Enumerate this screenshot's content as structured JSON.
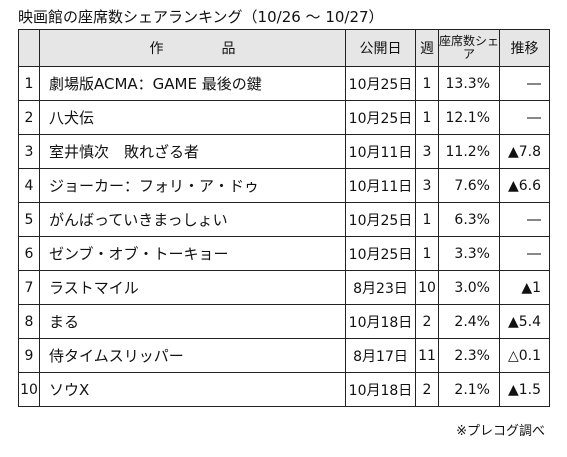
{
  "title": "映画館の座席数シェアランキング（10/26 ～ 10/27）",
  "headers": {
    "title_col": "作　品",
    "release_col": "公開日",
    "weeks_col": "週",
    "share_col": "座席数シェア",
    "trend_col": "推移"
  },
  "rows": [
    {
      "rank": "1",
      "title": "劇場版ACMA：GAME 最後の鍵",
      "release": "10月25日",
      "weeks": "1",
      "share": "13.3%",
      "trend": "―"
    },
    {
      "rank": "2",
      "title": "八犬伝",
      "release": "10月25日",
      "weeks": "1",
      "share": "12.1%",
      "trend": "―"
    },
    {
      "rank": "3",
      "title": "室井慎次　敗れざる者",
      "release": "10月11日",
      "weeks": "3",
      "share": "11.2%",
      "trend": "▲7.8"
    },
    {
      "rank": "4",
      "title": "ジョーカー：フォリ・ア・ドゥ",
      "release": "10月11日",
      "weeks": "3",
      "share": "7.6%",
      "trend": "▲6.6"
    },
    {
      "rank": "5",
      "title": "がんばっていきまっしょい",
      "release": "10月25日",
      "weeks": "1",
      "share": "6.3%",
      "trend": "―"
    },
    {
      "rank": "6",
      "title": "ゼンブ・オブ・トーキョー",
      "release": "10月25日",
      "weeks": "1",
      "share": "3.3%",
      "trend": "―"
    },
    {
      "rank": "7",
      "title": "ラストマイル",
      "release": "8月23日",
      "weeks": "10",
      "share": "3.0%",
      "trend": "▲1"
    },
    {
      "rank": "8",
      "title": "まる",
      "release": "10月18日",
      "weeks": "2",
      "share": "2.4%",
      "trend": "▲5.4"
    },
    {
      "rank": "9",
      "title": "侍タイムスリッパー",
      "release": "8月17日",
      "weeks": "11",
      "share": "2.3%",
      "trend": "△0.1"
    },
    {
      "rank": "10",
      "title": "ソウX",
      "release": "10月18日",
      "weeks": "2",
      "share": "2.1%",
      "trend": "▲1.5"
    }
  ],
  "note": "※プレコグ調べ"
}
